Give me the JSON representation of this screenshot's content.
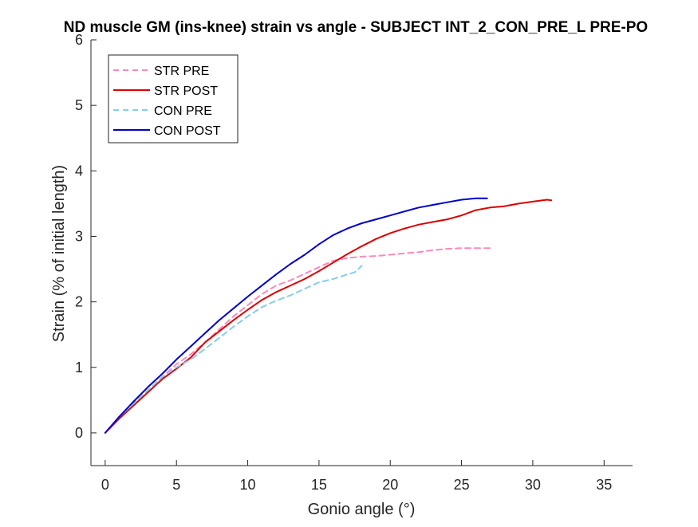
{
  "chart_data": {
    "type": "line",
    "title": "ND muscle GM (ins-knee) strain vs angle - SUBJECT INT_2_CON_PRE_L PRE-PO",
    "xlabel": "Gonio angle (°)",
    "ylabel": "Strain (% of initial length)",
    "xlim": [
      -1,
      37
    ],
    "ylim": [
      -0.5,
      6
    ],
    "xticks": [
      0,
      5,
      10,
      15,
      20,
      25,
      30,
      35
    ],
    "yticks": [
      0,
      1,
      2,
      3,
      4,
      5,
      6
    ],
    "grid": false,
    "legend_position": "top-left",
    "series": [
      {
        "name": "STR PRE",
        "color": "#ff88bb",
        "style": "dashed",
        "x": [
          0,
          1,
          2,
          3,
          4,
          5,
          6,
          7,
          8,
          9,
          10,
          11,
          12,
          13,
          14,
          15,
          16,
          17,
          18,
          19,
          20,
          21,
          22,
          23,
          24,
          25,
          26,
          27
        ],
        "y": [
          0,
          0.25,
          0.45,
          0.65,
          0.85,
          1.05,
          1.2,
          1.38,
          1.58,
          1.78,
          1.95,
          2.12,
          2.25,
          2.33,
          2.43,
          2.53,
          2.63,
          2.67,
          2.69,
          2.7,
          2.72,
          2.74,
          2.76,
          2.79,
          2.81,
          2.82,
          2.82,
          2.82
        ]
      },
      {
        "name": "STR POST",
        "color": "#dd0000",
        "style": "solid",
        "x": [
          0,
          1,
          2,
          3,
          4,
          5,
          6,
          7,
          8,
          9,
          10,
          11,
          12,
          13,
          14,
          15,
          16,
          17,
          18,
          19,
          20,
          21,
          22,
          23,
          24,
          25,
          26,
          27,
          28,
          29,
          30,
          31,
          31.3
        ],
        "y": [
          0,
          0.22,
          0.42,
          0.62,
          0.82,
          0.98,
          1.15,
          1.38,
          1.55,
          1.72,
          1.88,
          2.03,
          2.15,
          2.25,
          2.35,
          2.47,
          2.6,
          2.73,
          2.85,
          2.96,
          3.05,
          3.12,
          3.18,
          3.22,
          3.26,
          3.32,
          3.4,
          3.44,
          3.46,
          3.5,
          3.53,
          3.56,
          3.55
        ]
      },
      {
        "name": "CON PRE",
        "color": "#88ccee",
        "style": "dashed",
        "x": [
          0,
          1,
          2,
          3,
          4,
          5,
          6,
          7,
          8,
          9,
          10,
          11,
          12,
          13,
          14,
          15,
          16,
          17,
          17.5,
          18
        ],
        "y": [
          0,
          0.25,
          0.45,
          0.65,
          0.85,
          1.0,
          1.12,
          1.28,
          1.45,
          1.62,
          1.78,
          1.92,
          2.02,
          2.1,
          2.2,
          2.3,
          2.35,
          2.42,
          2.45,
          2.55
        ]
      },
      {
        "name": "CON POST",
        "color": "#0000cc",
        "style": "solid",
        "x": [
          0,
          1,
          2,
          3,
          4,
          5,
          6,
          7,
          8,
          9,
          10,
          11,
          12,
          13,
          14,
          15,
          16,
          17,
          18,
          19,
          20,
          21,
          22,
          23,
          24,
          25,
          26,
          26.8
        ],
        "y": [
          0,
          0.25,
          0.48,
          0.7,
          0.9,
          1.12,
          1.32,
          1.52,
          1.72,
          1.9,
          2.08,
          2.25,
          2.42,
          2.58,
          2.72,
          2.88,
          3.02,
          3.12,
          3.2,
          3.26,
          3.32,
          3.38,
          3.44,
          3.48,
          3.52,
          3.56,
          3.58,
          3.58
        ]
      }
    ]
  }
}
